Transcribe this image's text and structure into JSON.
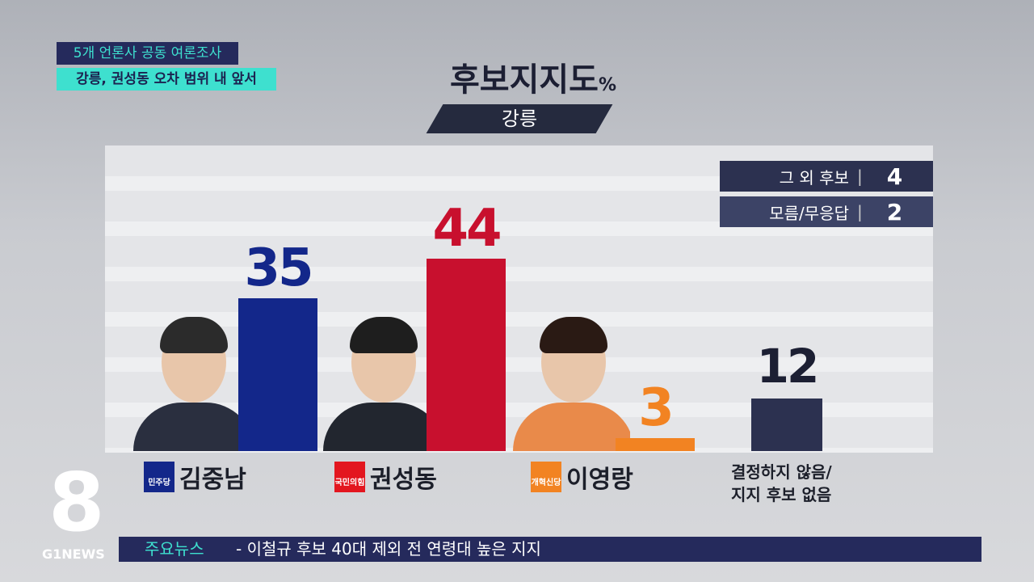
{
  "headline": {
    "tag": "5개 언론사 공동 여론조사",
    "subtitle": "강릉, 권성동 오차 범위 내 앞서"
  },
  "chart_data": {
    "type": "bar",
    "title": "후보지지도",
    "unit": "%",
    "region": "강릉",
    "categories": [
      "김중남",
      "권성동",
      "이영랑",
      "결정하지 않음/ 지지 후보 없음"
    ],
    "values": [
      35,
      44,
      3,
      12
    ],
    "colors": [
      "#13278a",
      "#c8102e",
      "#f28322",
      "#2c3150"
    ],
    "parties": [
      "민주당",
      "국민의힘",
      "개혁신당",
      ""
    ],
    "extra": [
      {
        "label": "그 외 후보",
        "value": 4
      },
      {
        "label": "모름/무응답",
        "value": 2
      }
    ]
  },
  "ticker": {
    "label": "주요뉴스",
    "text": "- 이철규 후보 40대 제외 전 연령대 높은 지지"
  },
  "channel": {
    "number": "8",
    "name": "G1NEWS"
  }
}
